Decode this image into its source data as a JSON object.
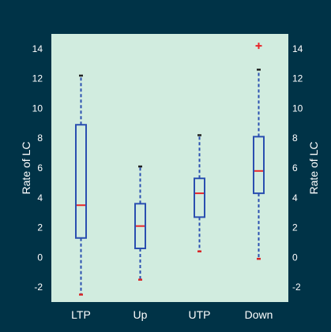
{
  "chart_data": {
    "type": "box",
    "ylabel_left": "Rate of LC",
    "ylabel_right": "Rate of LC",
    "ylim": [
      -3,
      15
    ],
    "yticks": [
      -2,
      0,
      2,
      4,
      6,
      8,
      10,
      12,
      14
    ],
    "categories": [
      "LTP",
      "Up",
      "UTP",
      "Down"
    ],
    "boxes": [
      {
        "category": "LTP",
        "whisker_low": -2.5,
        "q1": 1.3,
        "median": 3.5,
        "q3": 8.9,
        "whisker_high": 12.2,
        "outliers": []
      },
      {
        "category": "Up",
        "whisker_low": -1.5,
        "q1": 0.6,
        "median": 2.1,
        "q3": 3.6,
        "whisker_high": 6.1,
        "outliers": []
      },
      {
        "category": "UTP",
        "whisker_low": 0.4,
        "q1": 2.7,
        "median": 4.3,
        "q3": 5.3,
        "whisker_high": 8.2,
        "outliers": []
      },
      {
        "category": "Down",
        "whisker_low": -0.1,
        "q1": 4.3,
        "median": 5.8,
        "q3": 8.1,
        "whisker_high": 12.6,
        "outliers": [
          14.2
        ]
      }
    ],
    "colors": {
      "background": "#003347",
      "plot_area": "#d1ecdf",
      "box": "#2a4fb0",
      "median": "#e8262a",
      "outlier": "#e8262a",
      "text": "#ffffff",
      "whisker_low_cap": "#d92626",
      "whisker_high_cap": "#222222"
    },
    "grid": false,
    "legend": "none"
  }
}
